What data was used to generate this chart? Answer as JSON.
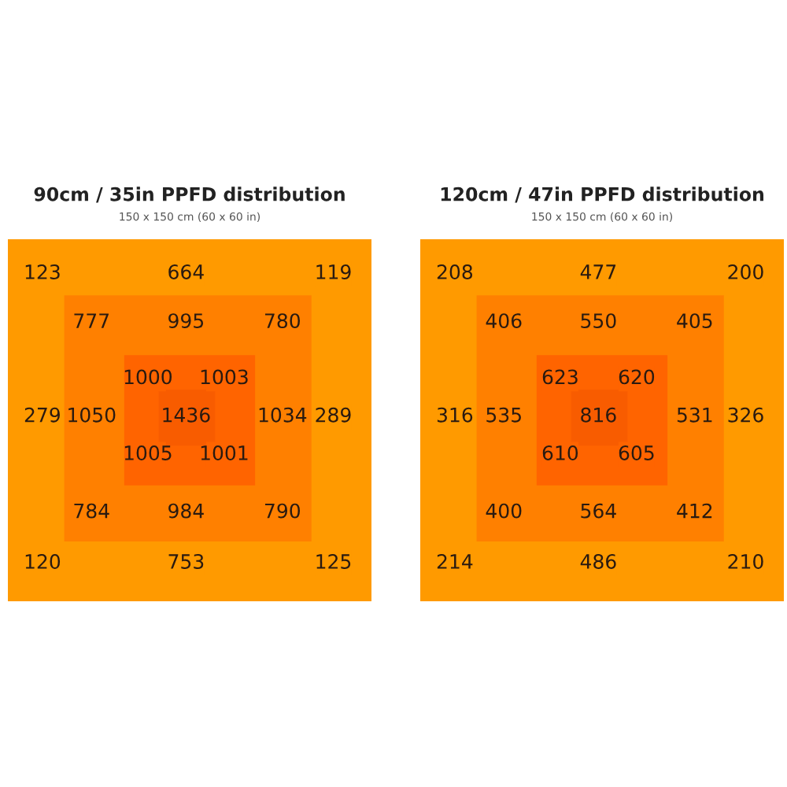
{
  "chart_data": [
    {
      "type": "other",
      "title": "90cm / 35in PPFD distribution",
      "subtitle": "150 x 150 cm (60 x 60 in)",
      "data_labels": true,
      "values": [
        123,
        null,
        null,
        664,
        null,
        null,
        119,
        null,
        777,
        null,
        995,
        null,
        780,
        null,
        null,
        null,
        1000,
        null,
        1003,
        null,
        null,
        279,
        1050,
        null,
        1436,
        null,
        1034,
        289,
        null,
        null,
        1005,
        null,
        1001,
        null,
        null,
        null,
        784,
        null,
        984,
        null,
        790,
        null,
        120,
        null,
        null,
        753,
        null,
        null,
        125
      ],
      "colors": [
        "#ff9a00",
        null,
        null,
        "#ff9a00",
        null,
        null,
        "#ff9a00",
        null,
        "#ff8000",
        null,
        "#ff8000",
        null,
        "#ff8000",
        null,
        null,
        null,
        "#ff6400",
        null,
        "#ff6400",
        null,
        null,
        "#ff9a00",
        "#ff8000",
        null,
        "#f85c00",
        null,
        "#ff8000",
        "#ff9a00",
        null,
        null,
        "#ff6400",
        null,
        "#ff6400",
        null,
        null,
        null,
        "#ff8000",
        null,
        "#ff8000",
        null,
        "#ff8000",
        null,
        "#ff9a00",
        null,
        null,
        "#ff9a00",
        null,
        null,
        "#ff9a00"
      ]
    },
    {
      "type": "other",
      "title": "120cm / 47in PPFD distribution",
      "subtitle": "150 x 150 cm (60 x 60 in)",
      "data_labels": true,
      "values": [
        208,
        null,
        null,
        477,
        null,
        null,
        200,
        null,
        406,
        null,
        550,
        null,
        405,
        null,
        null,
        null,
        623,
        null,
        620,
        null,
        null,
        316,
        535,
        null,
        816,
        null,
        531,
        326,
        null,
        null,
        610,
        null,
        605,
        null,
        null,
        null,
        400,
        null,
        564,
        null,
        412,
        null,
        214,
        null,
        null,
        486,
        null,
        null,
        210
      ],
      "colors": [
        "#ff9a00",
        null,
        null,
        "#ff9a00",
        null,
        null,
        "#ff9a00",
        null,
        "#ff8000",
        null,
        "#ff8000",
        null,
        "#ff8000",
        null,
        null,
        null,
        "#ff6400",
        null,
        "#ff6400",
        null,
        null,
        "#ff9a00",
        "#ff8000",
        null,
        "#f85c00",
        null,
        "#ff8000",
        "#ff9a00",
        null,
        null,
        "#ff6400",
        null,
        "#ff6400",
        null,
        null,
        null,
        "#ff8000",
        null,
        "#ff8000",
        null,
        "#ff8000",
        null,
        "#ff9a00",
        null,
        null,
        "#ff9a00",
        null,
        null,
        "#ff9a00"
      ]
    }
  ]
}
